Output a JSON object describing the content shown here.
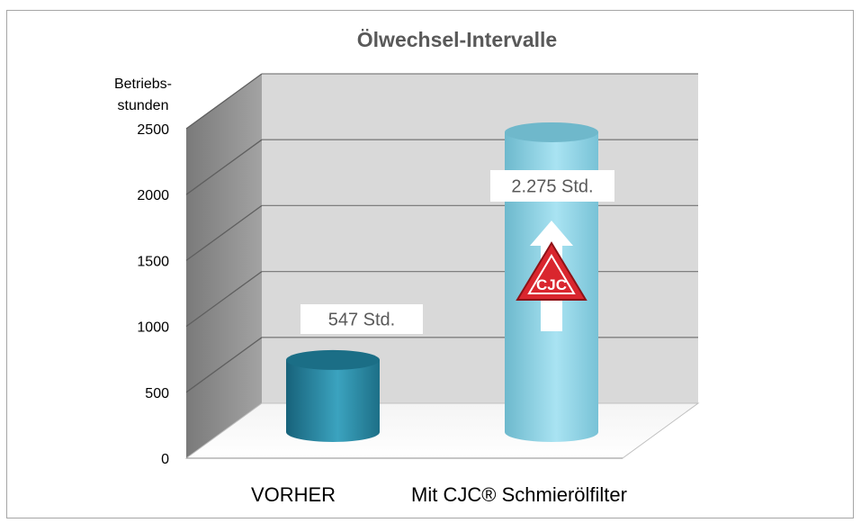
{
  "chart_data": {
    "type": "bar",
    "title": "Ölwechsel-Intervalle",
    "ylabel": "Betriebs-\nstunden",
    "xlabel": "",
    "categories": [
      "VORHER",
      "Mit CJC® Schmierölfilter"
    ],
    "values": [
      547,
      2275
    ],
    "data_labels": [
      "547 Std.",
      "2.275 Std."
    ],
    "ylim": [
      0,
      2500
    ],
    "yticks": [
      0,
      500,
      1000,
      1500,
      2000,
      2500
    ],
    "grid": true,
    "style": "3d-cylinder",
    "colors": [
      "#2e8aa3",
      "#8fd0e0"
    ],
    "logo": {
      "name": "cjc-warning-triangle-logo",
      "text": "CJC",
      "color": "#d9262e"
    }
  }
}
